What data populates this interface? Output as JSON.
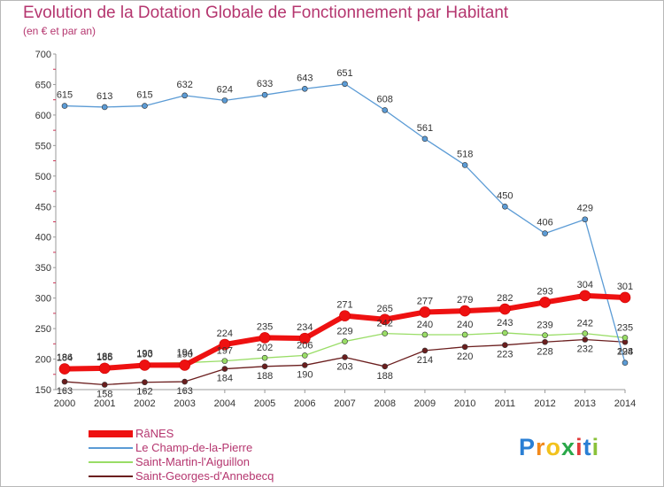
{
  "chart_data": {
    "type": "line",
    "title": "Evolution de la Dotation Globale de Fonctionnement par Habitant",
    "subtitle": "(en € et par an)",
    "x": [
      "2000",
      "2001",
      "2002",
      "2003",
      "2004",
      "2005",
      "2006",
      "2007",
      "2008",
      "2009",
      "2010",
      "2011",
      "2012",
      "2013",
      "2014"
    ],
    "ylim": [
      150,
      700
    ],
    "yticks": [
      150,
      200,
      250,
      300,
      350,
      400,
      450,
      500,
      550,
      600,
      650,
      700
    ],
    "grid": false,
    "legend_position": "bottom-left",
    "series": [
      {
        "name": "RâNES",
        "color": "#ee1111",
        "values": [
          184,
          185,
          190,
          190,
          224,
          235,
          234,
          271,
          265,
          277,
          279,
          282,
          293,
          304,
          301
        ]
      },
      {
        "name": "Le Champ-de-la-Pierre",
        "color": "#5b9bd5",
        "values": [
          615,
          613,
          615,
          632,
          624,
          633,
          643,
          651,
          608,
          561,
          518,
          450,
          406,
          429,
          194
        ]
      },
      {
        "name": "Saint-Martin-l'Aiguillon",
        "color": "#99dd66",
        "values": [
          186,
          188,
          193,
          194,
          197,
          202,
          206,
          229,
          242,
          240,
          240,
          243,
          239,
          242,
          235
        ]
      },
      {
        "name": "Saint-Georges-d'Annebecq",
        "color": "#6b1e1e",
        "values": [
          163,
          158,
          162,
          163,
          184,
          188,
          190,
          203,
          188,
          214,
          220,
          223,
          228,
          232,
          228
        ]
      }
    ]
  },
  "logo": {
    "letters": [
      "P",
      "r",
      "o",
      "x",
      "i",
      "t",
      "i"
    ],
    "colors": [
      "#2a7fd4",
      "#f28a1c",
      "#f2c21c",
      "#2aa84a",
      "#e23b3b",
      "#2a7fd4",
      "#8ac23a"
    ]
  }
}
